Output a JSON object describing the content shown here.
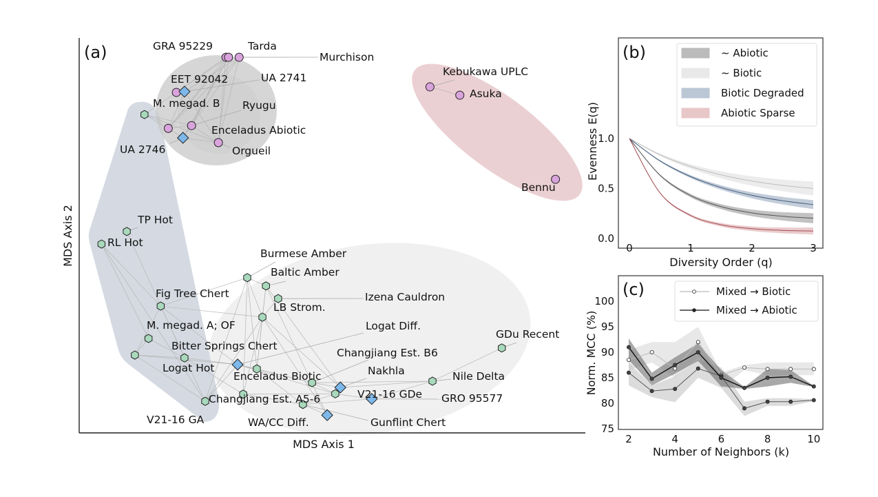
{
  "chart_data": [
    {
      "panel": "(a)",
      "type": "scatter",
      "xlabel": "MDS Axis 1",
      "ylabel": "MDS Axis 2",
      "xlim": [
        0,
        100
      ],
      "ylim": [
        0,
        100
      ],
      "ticks": false,
      "grid": false,
      "marker_colors": {
        "circle": "#d9a3dc",
        "diamond": "#7db8ea",
        "hexagon": "#a9d9bc"
      },
      "points": [
        {
          "label": "GRA 95229",
          "x": 29.0,
          "y": 95.1,
          "marker": "circle"
        },
        {
          "label": "Tarda",
          "x": 29.5,
          "y": 95.1,
          "marker": "circle"
        },
        {
          "label": "Murchison",
          "x": 31.6,
          "y": 95.1,
          "marker": "circle"
        },
        {
          "label": "EET 92042",
          "x": 19.2,
          "y": 86.2,
          "marker": "circle"
        },
        {
          "label": "Ryugu",
          "x": 22.2,
          "y": 77.8,
          "marker": "circle"
        },
        {
          "label": "Enceladus Abiotic",
          "x": 17.6,
          "y": 77.1,
          "marker": "circle"
        },
        {
          "label": "Orgueil",
          "x": 27.5,
          "y": 73.5,
          "marker": "circle"
        },
        {
          "label": "Kebukawa UPLC",
          "x": 69.3,
          "y": 87.6,
          "marker": "circle"
        },
        {
          "label": "Asuka",
          "x": 75.2,
          "y": 85.5,
          "marker": "circle"
        },
        {
          "label": "Bennu",
          "x": 94.1,
          "y": 64.2,
          "marker": "circle"
        },
        {
          "label": "UA 2741",
          "x": 20.8,
          "y": 86.4,
          "marker": "diamond"
        },
        {
          "label": "UA 2746",
          "x": 20.5,
          "y": 74.7,
          "marker": "diamond"
        },
        {
          "label": "Logat Diff.",
          "x": 31.3,
          "y": 17.3,
          "marker": "diamond"
        },
        {
          "label": "Nakhla",
          "x": 51.6,
          "y": 11.5,
          "marker": "diamond"
        },
        {
          "label": "GRO 95577",
          "x": 57.8,
          "y": 8.6,
          "marker": "diamond"
        },
        {
          "label": "WA/CC Diff.",
          "x": 49.0,
          "y": 4.5,
          "marker": "diamond"
        },
        {
          "label": "M. megad. B",
          "x": 12.9,
          "y": 80.6,
          "marker": "hexagon"
        },
        {
          "label": "TP Hot",
          "x": 9.4,
          "y": 51.0,
          "marker": "hexagon"
        },
        {
          "label": "RL Hot",
          "x": 4.4,
          "y": 47.8,
          "marker": "hexagon"
        },
        {
          "label": "Burmese Amber",
          "x": 33.2,
          "y": 39.3,
          "marker": "hexagon"
        },
        {
          "label": "Baltic Amber",
          "x": 36.9,
          "y": 37.2,
          "marker": "hexagon"
        },
        {
          "label": "Izena Cauldron",
          "x": 39.3,
          "y": 34.0,
          "marker": "hexagon"
        },
        {
          "label": "LB Strom.",
          "x": 36.2,
          "y": 29.3,
          "marker": "hexagon"
        },
        {
          "label": "Fig Tree Chert",
          "x": 16.1,
          "y": 32.1,
          "marker": "hexagon"
        },
        {
          "label": "M. megad. A; OF",
          "x": 13.7,
          "y": 23.9,
          "marker": "hexagon"
        },
        {
          "label": "Logat Hot",
          "x": 11.0,
          "y": 19.7,
          "marker": "hexagon"
        },
        {
          "label": "Bitter Springs Chert",
          "x": 20.8,
          "y": 19.0,
          "marker": "hexagon"
        },
        {
          "label": "Enceladus Biotic",
          "x": 35.1,
          "y": 16.2,
          "marker": "hexagon"
        },
        {
          "label": "Changjiang Est. B6",
          "x": 46.0,
          "y": 12.7,
          "marker": "hexagon"
        },
        {
          "label": "Changjiang Est. A5-6",
          "x": 32.4,
          "y": 9.8,
          "marker": "hexagon"
        },
        {
          "label": "V21-16 GA",
          "x": 24.9,
          "y": 8.0,
          "marker": "hexagon"
        },
        {
          "label": "Gunflint Chert",
          "x": 44.2,
          "y": 7.2,
          "marker": "hexagon"
        },
        {
          "label": "V21-16 GDe",
          "x": 50.6,
          "y": 9.9,
          "marker": "hexagon"
        },
        {
          "label": "Nile Delta",
          "x": 69.8,
          "y": 13.1,
          "marker": "hexagon"
        },
        {
          "label": "GDu Recent",
          "x": 83.5,
          "y": 21.5,
          "marker": "hexagon"
        }
      ],
      "edges": [
        [
          0,
          3
        ],
        [
          0,
          4
        ],
        [
          0,
          5
        ],
        [
          0,
          6
        ],
        [
          1,
          3
        ],
        [
          1,
          4
        ],
        [
          1,
          5
        ],
        [
          1,
          6
        ],
        [
          1,
          11
        ],
        [
          2,
          4
        ],
        [
          2,
          5
        ],
        [
          2,
          6
        ],
        [
          2,
          10
        ],
        [
          3,
          10
        ],
        [
          3,
          16
        ],
        [
          4,
          5
        ],
        [
          4,
          6
        ],
        [
          4,
          11
        ],
        [
          5,
          11
        ],
        [
          5,
          16
        ],
        [
          6,
          11
        ],
        [
          6,
          16
        ],
        [
          4,
          16
        ],
        [
          10,
          5
        ],
        [
          10,
          6
        ],
        [
          7,
          8
        ],
        [
          18,
          23
        ],
        [
          18,
          24
        ],
        [
          18,
          30
        ],
        [
          17,
          26
        ],
        [
          23,
          19
        ],
        [
          23,
          22
        ],
        [
          23,
          25
        ],
        [
          23,
          30
        ],
        [
          24,
          25
        ],
        [
          24,
          26
        ],
        [
          25,
          26
        ],
        [
          25,
          30
        ],
        [
          25,
          12
        ],
        [
          26,
          12
        ],
        [
          26,
          29
        ],
        [
          19,
          20
        ],
        [
          19,
          22
        ],
        [
          19,
          27
        ],
        [
          19,
          29
        ],
        [
          20,
          22
        ],
        [
          20,
          27
        ],
        [
          20,
          13
        ],
        [
          20,
          15
        ],
        [
          21,
          22
        ],
        [
          22,
          27
        ],
        [
          22,
          29
        ],
        [
          22,
          30
        ],
        [
          22,
          15
        ],
        [
          22,
          13
        ],
        [
          12,
          27
        ],
        [
          12,
          28
        ],
        [
          12,
          32
        ],
        [
          27,
          28
        ],
        [
          27,
          31
        ],
        [
          28,
          13
        ],
        [
          28,
          32
        ],
        [
          29,
          31
        ],
        [
          29,
          32
        ],
        [
          30,
          12
        ],
        [
          31,
          15
        ],
        [
          31,
          32
        ],
        [
          32,
          13
        ],
        [
          32,
          14
        ],
        [
          13,
          33
        ],
        [
          14,
          33
        ],
        [
          31,
          14
        ],
        [
          33,
          34
        ],
        [
          28,
          33
        ],
        [
          19,
          30
        ],
        [
          23,
          12
        ]
      ],
      "regions": [
        {
          "group": "abiotic",
          "shape": "ellipse",
          "color": "#c8c8c8"
        },
        {
          "group": "abiotic-sparse",
          "shape": "ellipse",
          "color": "#e8c8cb"
        },
        {
          "group": "biotic-degraded",
          "shape": "polygon",
          "color": "#d5dae2"
        },
        {
          "group": "biotic",
          "shape": "ellipse",
          "color": "#f0f0f0"
        }
      ]
    },
    {
      "panel": "(b)",
      "type": "line",
      "xlabel": "Diversity Order (q)",
      "ylabel": "Evenness E(q)",
      "xlim": [
        0,
        3
      ],
      "ylim": [
        0,
        1.05
      ],
      "xticks": [
        "0",
        "1",
        "2",
        "3"
      ],
      "yticks": [
        "0.0",
        "0.5",
        "1.0"
      ],
      "legend_position": "top-right",
      "x": [
        0,
        0.5,
        1,
        1.5,
        2,
        2.5,
        3
      ],
      "series": [
        {
          "name": "∼ Abiotic",
          "fill": "#8f8f8f",
          "line": "#555555",
          "values": [
            1,
            0.633,
            0.429,
            0.318,
            0.256,
            0.222,
            0.203
          ],
          "lower": [
            1,
            0.625,
            0.412,
            0.293,
            0.223,
            0.18,
            0.153
          ],
          "upper": [
            1,
            0.641,
            0.446,
            0.343,
            0.289,
            0.264,
            0.253
          ]
        },
        {
          "name": "∼ Biotic",
          "fill": "#dcdcdc",
          "line": "#bdbdbd",
          "values": [
            1,
            0.837,
            0.72,
            0.636,
            0.575,
            0.531,
            0.5
          ],
          "lower": [
            1,
            0.825,
            0.697,
            0.601,
            0.528,
            0.473,
            0.43
          ],
          "upper": [
            1,
            0.849,
            0.743,
            0.671,
            0.622,
            0.589,
            0.57
          ]
        },
        {
          "name": "Biotic Degraded",
          "fill": "#8fa2ba",
          "line": "#3d5878",
          "values": [
            1,
            0.776,
            0.619,
            0.509,
            0.432,
            0.378,
            0.339
          ],
          "lower": [
            1,
            0.769,
            0.604,
            0.487,
            0.402,
            0.341,
            0.294
          ],
          "upper": [
            1,
            0.784,
            0.634,
            0.532,
            0.462,
            0.416,
            0.384
          ]
        },
        {
          "name": "Abiotic Sparse",
          "fill": "#d9a2a6",
          "line": "#a44a50",
          "values": [
            1,
            0.456,
            0.23,
            0.137,
            0.098,
            0.081,
            0.075
          ],
          "lower": [
            1,
            0.45,
            0.218,
            0.119,
            0.075,
            0.052,
            0.04
          ],
          "upper": [
            1,
            0.462,
            0.242,
            0.155,
            0.121,
            0.11,
            0.11
          ]
        }
      ]
    },
    {
      "panel": "(c)",
      "type": "line",
      "xlabel": "Number of Neighbors (k)",
      "ylabel": "Norm. MCC (%)",
      "xlim": [
        1.8,
        10.3
      ],
      "ylim": [
        75,
        104
      ],
      "xticks": [
        "2",
        "4",
        "6",
        "8",
        "10"
      ],
      "yticks": [
        "75",
        "80",
        "85",
        "90",
        "95",
        "100"
      ],
      "legend_position": "top-right",
      "x": [
        2,
        3,
        4,
        5,
        6,
        7,
        8,
        9,
        10
      ],
      "series": [
        {
          "name": "Mixed → Biotic",
          "line": "#bbbbbb",
          "fill": "#d8d8d8",
          "marker": "open",
          "values": [
            88.5,
            90.0,
            86.8,
            92.0,
            85.5,
            87.0,
            86.7,
            86.7,
            86.7
          ],
          "lower": [
            86.5,
            88.0,
            85.0,
            89.0,
            83.0,
            86.5,
            85.5,
            85.5,
            85.5
          ],
          "upper": [
            90.5,
            92.0,
            92.0,
            95.0,
            86.0,
            87.5,
            88.0,
            88.0,
            88.0
          ]
        },
        {
          "name": "",
          "line": "#555555",
          "fill": "#c4c4c4",
          "marker": "filled",
          "values": [
            86.0,
            82.4,
            82.8,
            86.8,
            85.3,
            79.0,
            80.3,
            80.3,
            80.6
          ],
          "lower": [
            83.5,
            81.2,
            80.2,
            85.0,
            83.0,
            77.5,
            79.5,
            79.5,
            80.4
          ],
          "upper": [
            88.0,
            83.5,
            85.3,
            88.5,
            87.0,
            80.3,
            81.0,
            81.0,
            80.8
          ]
        },
        {
          "name": "Mixed → Abiotic",
          "line": "#111111",
          "fill": "#707070",
          "marker": "filled",
          "values": [
            91.0,
            84.8,
            87.5,
            90.0,
            85.0,
            83.0,
            85.0,
            85.2,
            83.3
          ],
          "lower": [
            88.5,
            83.5,
            85.8,
            88.3,
            83.3,
            82.8,
            83.3,
            84.0,
            83.2
          ],
          "upper": [
            92.7,
            86.0,
            89.0,
            91.7,
            86.5,
            83.2,
            86.7,
            86.5,
            83.4
          ]
        }
      ]
    }
  ]
}
